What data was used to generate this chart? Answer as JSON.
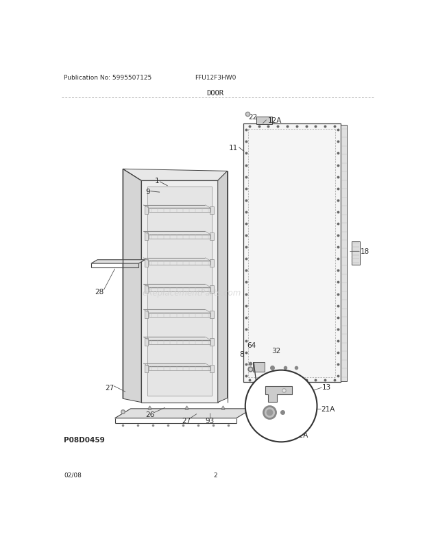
{
  "title": "DOOR",
  "pub_no": "Publication No: 5995507125",
  "model": "FFU12F3HW0",
  "date": "02/08",
  "page": "2",
  "part_id": "P08D0459",
  "background_color": "#ffffff",
  "text_color": "#2a2a2a",
  "line_color": "#444444",
  "watermark": "eReplacementParts.com"
}
